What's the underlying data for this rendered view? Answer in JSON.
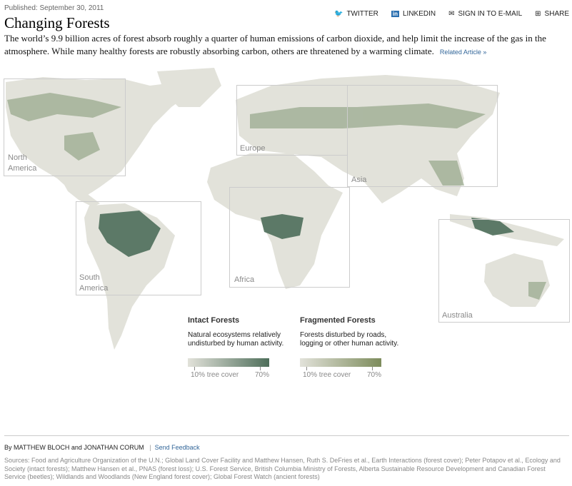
{
  "header": {
    "published": "Published: September 30, 2011",
    "title": "Changing Forests",
    "lead": "The world’s 9.9 billion acres of forest absorb roughly a quarter of human emissions of carbon dioxide, and help limit the increase of the gas in the atmosphere. While many healthy forests are robustly absorbing carbon, others are threatened by a warming climate.",
    "related": "Related Article »"
  },
  "share": [
    {
      "icon": "twitter-icon",
      "label": "TWITTER"
    },
    {
      "icon": "linkedin-icon",
      "label": "LINKEDIN"
    },
    {
      "icon": "email-icon",
      "label": "SIGN IN TO E-MAIL"
    },
    {
      "icon": "share-icon",
      "label": "SHARE"
    }
  ],
  "regions": {
    "north_america": "North America",
    "south_america": "South America",
    "europe": "Europe",
    "asia": "Asia",
    "africa": "Africa",
    "australia": "Australia"
  },
  "legend": {
    "intact": {
      "title": "Intact Forests",
      "desc": "Natural ecosystems relatively undisturbed by human activity.",
      "min": "10% tree cover",
      "max": "70%",
      "color": "#4e6e5a"
    },
    "fragmented": {
      "title": "Fragmented Forests",
      "desc": "Forests disturbed by roads, logging or other human activity.",
      "min": "10% tree cover",
      "max": "70%",
      "color": "#7d8c5c"
    }
  },
  "colors": {
    "land": "#e2e2da",
    "forest_light": "#b9c2ae",
    "forest_dark": "#4e6e5a"
  },
  "footer": {
    "byline": "By MATTHEW BLOCH and JONATHAN CORUM",
    "separator": "|",
    "feedback": "Send Feedback",
    "sources": "Sources: Food and Agriculture Organization of the U.N.; Global Land Cover Facility and Matthew Hansen, Ruth S. DeFries et al., Earth Interactions (forest cover); Peter Potapov et al., Ecology and Society (intact forests); Matthew Hansen et al., PNAS (forest loss); U.S. Forest Service, British Columbia Ministry of Forests, Alberta Sustainable Resource Development and Canadian Forest Service (beetles); Wildlands and Woodlands (New England forest cover); Global Forest Watch (ancient forests)"
  }
}
